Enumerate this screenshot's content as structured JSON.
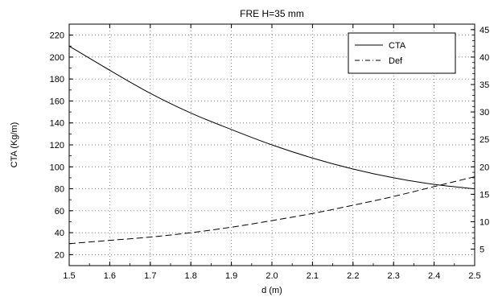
{
  "chart_data": {
    "type": "line",
    "title": "FRE H=35 mm",
    "xlabel": "d (m)",
    "ylabel_left": "CTA (Kg/m)",
    "ylabel_right": "",
    "xlim": [
      1.5,
      2.5
    ],
    "ylim_left": [
      10,
      230
    ],
    "ylim_right": [
      2,
      46
    ],
    "x_ticks": [
      "1.5",
      "1.6",
      "1.7",
      "1.8",
      "1.9",
      "2.0",
      "2.1",
      "2.2",
      "2.3",
      "2.4",
      "2.5"
    ],
    "y_left_ticks": [
      "20",
      "40",
      "60",
      "80",
      "100",
      "120",
      "140",
      "160",
      "180",
      "200",
      "220"
    ],
    "y_right_ticks": [
      "5",
      "10",
      "15",
      "20",
      "25",
      "30",
      "35",
      "40",
      "45"
    ],
    "grid": true,
    "legend_position": "top-right",
    "series": [
      {
        "name": "CTA",
        "axis": "left",
        "style": "solid",
        "x": [
          1.5,
          1.6,
          1.7,
          1.8,
          1.9,
          2.0,
          2.1,
          2.2,
          2.3,
          2.4,
          2.5
        ],
        "y": [
          210,
          188,
          167,
          149,
          134,
          120,
          108,
          98,
          90,
          84,
          80
        ]
      },
      {
        "name": "Def",
        "axis": "right",
        "style": "dashed",
        "x": [
          1.5,
          1.6,
          1.7,
          1.8,
          1.9,
          2.0,
          2.1,
          2.2,
          2.3,
          2.4,
          2.5
        ],
        "y": [
          6.0,
          6.6,
          7.2,
          8.0,
          9.0,
          10.2,
          11.5,
          13.0,
          14.6,
          16.4,
          18.2
        ]
      }
    ]
  },
  "colors": {
    "line": "#000000",
    "grid": "#555555",
    "background": "#ffffff"
  }
}
